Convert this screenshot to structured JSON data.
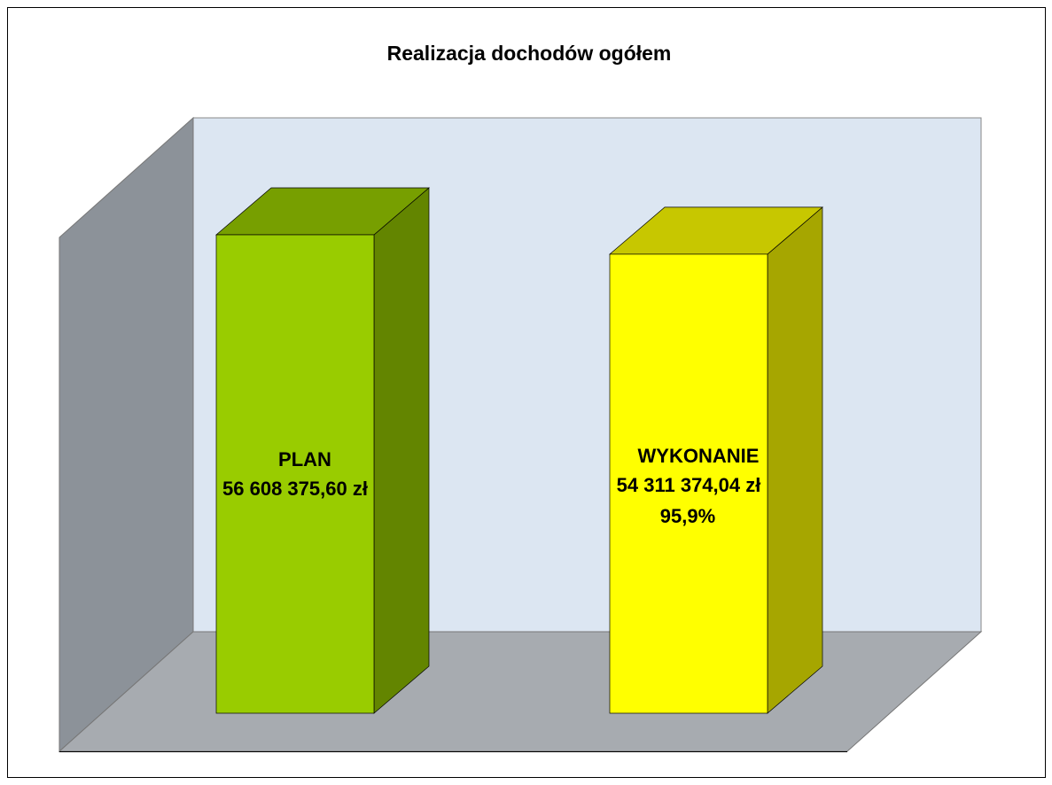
{
  "chart_data": {
    "type": "bar3d",
    "title": "Realizacja dochodów ogółem",
    "categories": [
      "PLAN",
      "WYKONANIE"
    ],
    "values": [
      56608375.6,
      54311374.04
    ],
    "value_labels": [
      "56 608 375,60 zł",
      "54 311 374,04 zł"
    ],
    "annotation": "95,9%",
    "colors": [
      "#99cc00",
      "#ffff00"
    ]
  }
}
